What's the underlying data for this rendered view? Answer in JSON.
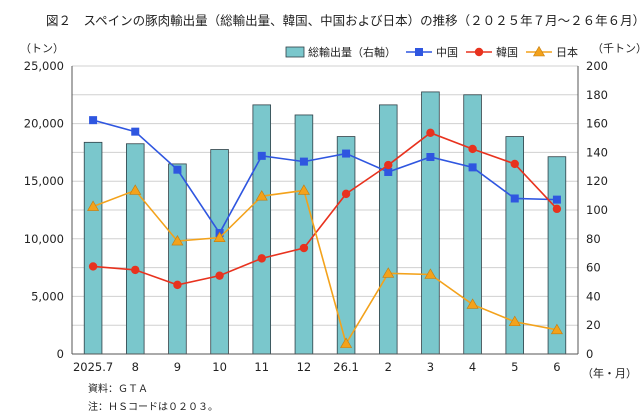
{
  "title": "図２　スペインの豚肉輸出量（総輸出量、韓国、中国および日本）の推移（２０２５年７月～２６年６月）",
  "left_unit": "（トン）",
  "right_unit": "（千トン）",
  "x_unit": "（年・月）",
  "notes": {
    "source": "資料：ＧＴＡ",
    "note": "注：ＨＳコードは０２０３。"
  },
  "colors": {
    "bar_fill": "#7ac7cc",
    "bar_stroke": "#2f3f46",
    "china": "#2f56e0",
    "korea": "#e8321e",
    "japan": "#f3a21b",
    "grid": "#d0d0d0",
    "axis": "#555555"
  },
  "chart_data": {
    "type": "bar+line",
    "categories": [
      "2025.7",
      "8",
      "9",
      "10",
      "11",
      "12",
      "26.1",
      "2",
      "3",
      "4",
      "5",
      "6"
    ],
    "y_left": {
      "min": 0,
      "max": 25000,
      "ticks": [
        "0",
        "5,000",
        "10,000",
        "15,000",
        "20,000",
        "25,000"
      ]
    },
    "y_right": {
      "min": 0,
      "max": 200,
      "ticks": [
        "0",
        "20",
        "40",
        "60",
        "80",
        "100",
        "120",
        "140",
        "160",
        "180",
        "200"
      ]
    },
    "grid": true,
    "legend_position": "top-right",
    "series": [
      {
        "name": "総輸出量（右軸）",
        "type": "bar",
        "axis": "right",
        "marker": "bar",
        "values": [
          147,
          146,
          132,
          142,
          173,
          166,
          151,
          173,
          182,
          180,
          151,
          137
        ]
      },
      {
        "name": "中国",
        "type": "line",
        "axis": "left",
        "marker": "square",
        "values": [
          20300,
          19300,
          16000,
          10500,
          17200,
          16700,
          17400,
          15800,
          17100,
          16200,
          13500,
          13400
        ]
      },
      {
        "name": "韓国",
        "type": "line",
        "axis": "left",
        "marker": "circle",
        "values": [
          7600,
          7300,
          6000,
          6800,
          8300,
          9200,
          13900,
          16400,
          19200,
          17800,
          16500,
          12600
        ]
      },
      {
        "name": "日本",
        "type": "line",
        "axis": "left",
        "marker": "triangle",
        "values": [
          12800,
          14200,
          9800,
          10100,
          13700,
          14200,
          900,
          7000,
          6900,
          4300,
          2800,
          2100
        ]
      }
    ]
  }
}
